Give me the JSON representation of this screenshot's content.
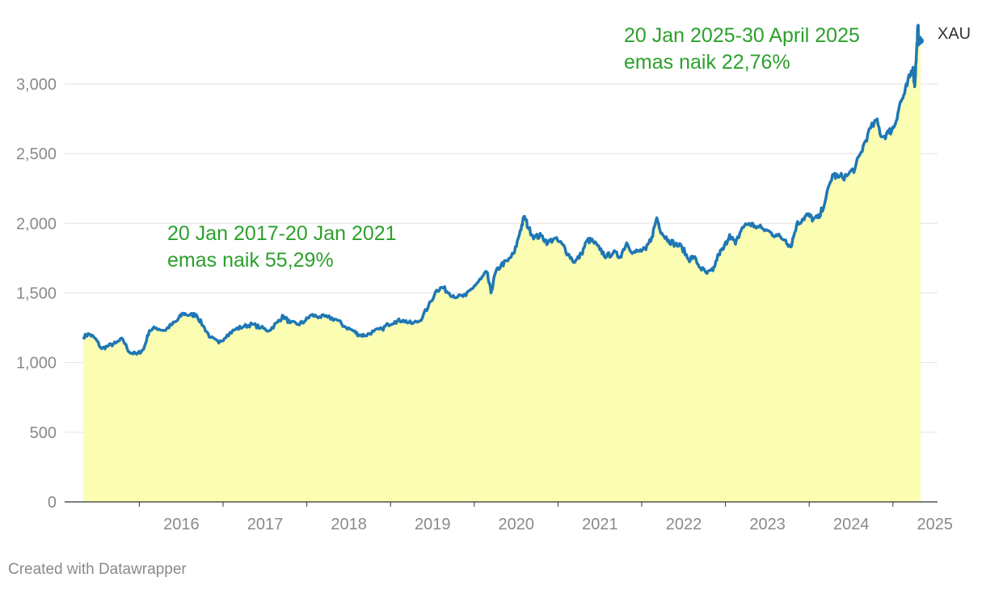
{
  "chart_data": {
    "type": "area",
    "title": "",
    "xlabel": "",
    "ylabel": "",
    "xlim": [
      2015.33,
      2025.33
    ],
    "ylim": [
      0,
      3400
    ],
    "yticks": [
      0,
      500,
      1000,
      1500,
      2000,
      2500,
      3000
    ],
    "ytick_labels": [
      "0",
      "500",
      "1,000",
      "1,500",
      "2,000",
      "2,500",
      "3,000"
    ],
    "xticks": [
      2016,
      2017,
      2018,
      2019,
      2020,
      2021,
      2022,
      2023,
      2024,
      2025
    ],
    "xtick_labels": [
      "2016",
      "2017",
      "2018",
      "2019",
      "2020",
      "2021",
      "2022",
      "2023",
      "2024",
      "2025"
    ],
    "grid": true,
    "series": [
      {
        "name": "XAU",
        "line_color": "#1f77b4",
        "fill_color": "#fbfdb3",
        "points": [
          [
            2015.33,
            1185
          ],
          [
            2015.4,
            1205
          ],
          [
            2015.47,
            1175
          ],
          [
            2015.55,
            1100
          ],
          [
            2015.63,
            1120
          ],
          [
            2015.72,
            1140
          ],
          [
            2015.8,
            1170
          ],
          [
            2015.88,
            1075
          ],
          [
            2015.97,
            1060
          ],
          [
            2016.05,
            1095
          ],
          [
            2016.12,
            1230
          ],
          [
            2016.2,
            1250
          ],
          [
            2016.3,
            1230
          ],
          [
            2016.38,
            1270
          ],
          [
            2016.45,
            1300
          ],
          [
            2016.52,
            1355
          ],
          [
            2016.6,
            1340
          ],
          [
            2016.68,
            1345
          ],
          [
            2016.76,
            1265
          ],
          [
            2016.85,
            1180
          ],
          [
            2016.95,
            1140
          ],
          [
            2017.05,
            1200
          ],
          [
            2017.15,
            1240
          ],
          [
            2017.25,
            1260
          ],
          [
            2017.35,
            1275
          ],
          [
            2017.45,
            1250
          ],
          [
            2017.55,
            1230
          ],
          [
            2017.65,
            1290
          ],
          [
            2017.72,
            1335
          ],
          [
            2017.8,
            1285
          ],
          [
            2017.9,
            1275
          ],
          [
            2017.97,
            1295
          ],
          [
            2018.05,
            1340
          ],
          [
            2018.15,
            1330
          ],
          [
            2018.25,
            1325
          ],
          [
            2018.35,
            1310
          ],
          [
            2018.45,
            1260
          ],
          [
            2018.55,
            1230
          ],
          [
            2018.62,
            1200
          ],
          [
            2018.7,
            1195
          ],
          [
            2018.8,
            1225
          ],
          [
            2018.9,
            1240
          ],
          [
            2018.97,
            1275
          ],
          [
            2019.05,
            1295
          ],
          [
            2019.15,
            1305
          ],
          [
            2019.25,
            1280
          ],
          [
            2019.35,
            1300
          ],
          [
            2019.45,
            1400
          ],
          [
            2019.55,
            1520
          ],
          [
            2019.62,
            1540
          ],
          [
            2019.7,
            1500
          ],
          [
            2019.8,
            1470
          ],
          [
            2019.9,
            1480
          ],
          [
            2020.0,
            1550
          ],
          [
            2020.08,
            1600
          ],
          [
            2020.15,
            1650
          ],
          [
            2020.2,
            1500
          ],
          [
            2020.25,
            1640
          ],
          [
            2020.32,
            1700
          ],
          [
            2020.4,
            1730
          ],
          [
            2020.48,
            1790
          ],
          [
            2020.55,
            1950
          ],
          [
            2020.6,
            2050
          ],
          [
            2020.65,
            1960
          ],
          [
            2020.72,
            1900
          ],
          [
            2020.8,
            1910
          ],
          [
            2020.88,
            1860
          ],
          [
            2020.95,
            1890
          ],
          [
            2021.05,
            1850
          ],
          [
            2021.12,
            1780
          ],
          [
            2021.2,
            1720
          ],
          [
            2021.28,
            1780
          ],
          [
            2021.35,
            1880
          ],
          [
            2021.42,
            1870
          ],
          [
            2021.5,
            1810
          ],
          [
            2021.58,
            1760
          ],
          [
            2021.66,
            1790
          ],
          [
            2021.74,
            1760
          ],
          [
            2021.82,
            1860
          ],
          [
            2021.9,
            1790
          ],
          [
            2021.97,
            1800
          ],
          [
            2022.05,
            1810
          ],
          [
            2022.12,
            1900
          ],
          [
            2022.18,
            2040
          ],
          [
            2022.24,
            1930
          ],
          [
            2022.32,
            1880
          ],
          [
            2022.4,
            1850
          ],
          [
            2022.48,
            1830
          ],
          [
            2022.56,
            1740
          ],
          [
            2022.62,
            1760
          ],
          [
            2022.7,
            1680
          ],
          [
            2022.78,
            1640
          ],
          [
            2022.85,
            1660
          ],
          [
            2022.92,
            1780
          ],
          [
            2022.98,
            1820
          ],
          [
            2023.05,
            1920
          ],
          [
            2023.12,
            1850
          ],
          [
            2023.2,
            1970
          ],
          [
            2023.28,
            2000
          ],
          [
            2023.35,
            1980
          ],
          [
            2023.45,
            1960
          ],
          [
            2023.55,
            1930
          ],
          [
            2023.62,
            1910
          ],
          [
            2023.72,
            1880
          ],
          [
            2023.78,
            1830
          ],
          [
            2023.85,
            1990
          ],
          [
            2023.92,
            2030
          ],
          [
            2023.98,
            2060
          ],
          [
            2024.05,
            2030
          ],
          [
            2024.12,
            2040
          ],
          [
            2024.2,
            2180
          ],
          [
            2024.28,
            2350
          ],
          [
            2024.35,
            2330
          ],
          [
            2024.45,
            2340
          ],
          [
            2024.55,
            2400
          ],
          [
            2024.62,
            2510
          ],
          [
            2024.7,
            2640
          ],
          [
            2024.8,
            2740
          ],
          [
            2024.87,
            2620
          ],
          [
            2024.95,
            2650
          ],
          [
            2025.02,
            2700
          ],
          [
            2025.08,
            2850
          ],
          [
            2025.14,
            2930
          ],
          [
            2025.2,
            3050
          ],
          [
            2025.24,
            3120
          ],
          [
            2025.26,
            2980
          ],
          [
            2025.28,
            3200
          ],
          [
            2025.3,
            3420
          ],
          [
            2025.31,
            3300
          ],
          [
            2025.33,
            3310
          ]
        ]
      }
    ],
    "annotations": [
      {
        "text_line1": "20 Jan 2017-20 Jan 2021",
        "text_line2": "emas naik 55,29%",
        "color": "#2ca02c"
      },
      {
        "text_line1": "20 Jan 2025-30 April 2025",
        "text_line2": "emas naik 22,76%",
        "color": "#2ca02c"
      }
    ]
  },
  "footer": {
    "credit": "Created with Datawrapper"
  }
}
